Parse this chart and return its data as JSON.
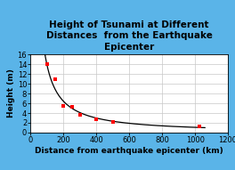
{
  "title": "Height of Tsunami at Different\nDistances  from the Earthquake\nEpicenter",
  "xlabel": "Distance from earthquake epicenter (km)",
  "ylabel": "Height (m)",
  "x_data": [
    100,
    150,
    200,
    250,
    300,
    400,
    500,
    1025
  ],
  "y_data": [
    14,
    11,
    5.5,
    5.2,
    3.7,
    2.7,
    2.2,
    1.2
  ],
  "xlim": [
    0,
    1200
  ],
  "ylim": [
    0,
    16
  ],
  "xticks": [
    0,
    200,
    400,
    600,
    800,
    1000,
    1200
  ],
  "yticks": [
    0,
    2,
    4,
    6,
    8,
    10,
    12,
    14,
    16
  ],
  "background_color": "#5ab4e8",
  "plot_bg_color": "#ffffff",
  "line_color": "#000000",
  "marker_color": "#ff0000",
  "title_fontsize": 7.5,
  "label_fontsize": 6.5,
  "tick_fontsize": 6,
  "title_fontweight": "bold",
  "label_fontweight": "bold"
}
